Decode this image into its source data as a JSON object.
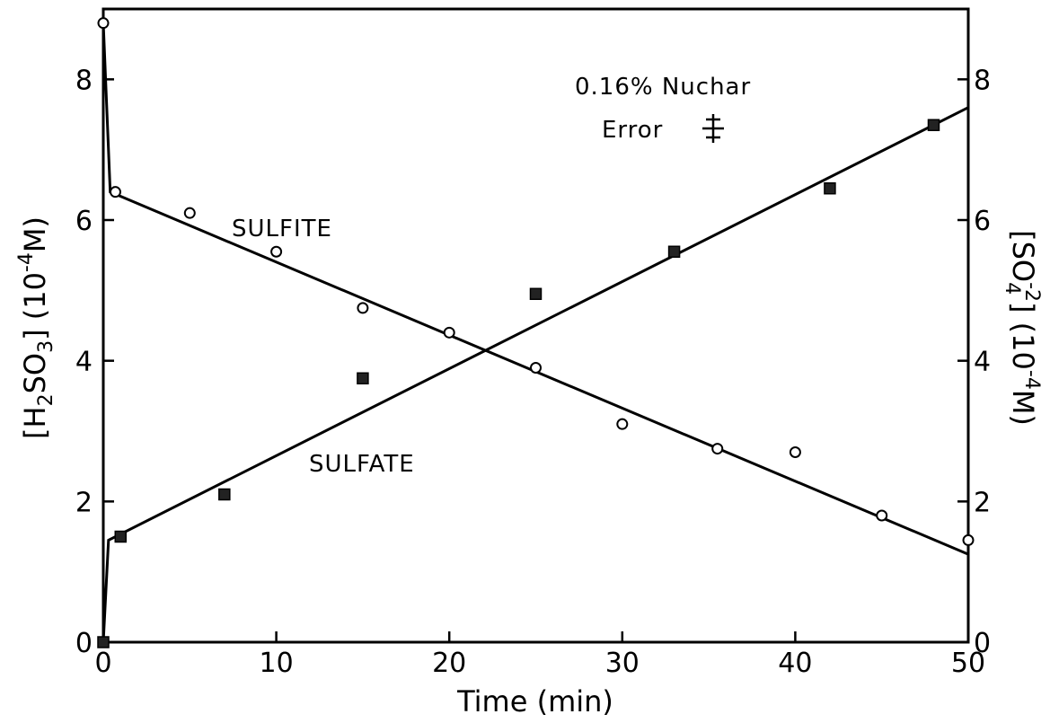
{
  "chart_data": {
    "type": "scatter",
    "title": "",
    "xlabel": "Time (min)",
    "ylabel_left": "[H2SO3] (10^-4 M)",
    "ylabel_right": "[SO4^-2] (10^-4 M)",
    "xlim": [
      0,
      50
    ],
    "ylim": [
      0,
      9
    ],
    "x_ticks": [
      0,
      10,
      20,
      30,
      40,
      50
    ],
    "y_ticks": [
      0,
      2,
      4,
      6,
      8
    ],
    "grid": false,
    "annotations": {
      "condition": "0.16% Nuchar",
      "error_label": "Error",
      "sulfite_label": "SULFITE",
      "sulfate_label": "SULFATE"
    },
    "series": [
      {
        "name": "SULFITE",
        "marker": "open-circle",
        "points": [
          {
            "x": 0,
            "y": 8.8
          },
          {
            "x": 0.7,
            "y": 6.4
          },
          {
            "x": 5,
            "y": 6.1
          },
          {
            "x": 10,
            "y": 5.55
          },
          {
            "x": 15,
            "y": 4.75
          },
          {
            "x": 20,
            "y": 4.4
          },
          {
            "x": 25,
            "y": 3.9
          },
          {
            "x": 30,
            "y": 3.1
          },
          {
            "x": 35.5,
            "y": 2.75
          },
          {
            "x": 40,
            "y": 2.7
          },
          {
            "x": 45,
            "y": 1.8
          },
          {
            "x": 50,
            "y": 1.45
          }
        ],
        "fit_line": [
          {
            "x": 0,
            "y": 8.8
          },
          {
            "x": 0.4,
            "y": 6.4
          },
          {
            "x": 50,
            "y": 1.25
          }
        ]
      },
      {
        "name": "SULFATE",
        "marker": "filled-square",
        "points": [
          {
            "x": 0,
            "y": 0
          },
          {
            "x": 1,
            "y": 1.5
          },
          {
            "x": 7,
            "y": 2.1
          },
          {
            "x": 15,
            "y": 3.75
          },
          {
            "x": 25,
            "y": 4.95
          },
          {
            "x": 33,
            "y": 5.55
          },
          {
            "x": 42,
            "y": 6.45
          },
          {
            "x": 48,
            "y": 7.35
          }
        ],
        "fit_line": [
          {
            "x": 0,
            "y": 0
          },
          {
            "x": 0.3,
            "y": 1.45
          },
          {
            "x": 50,
            "y": 7.6
          }
        ]
      }
    ]
  }
}
